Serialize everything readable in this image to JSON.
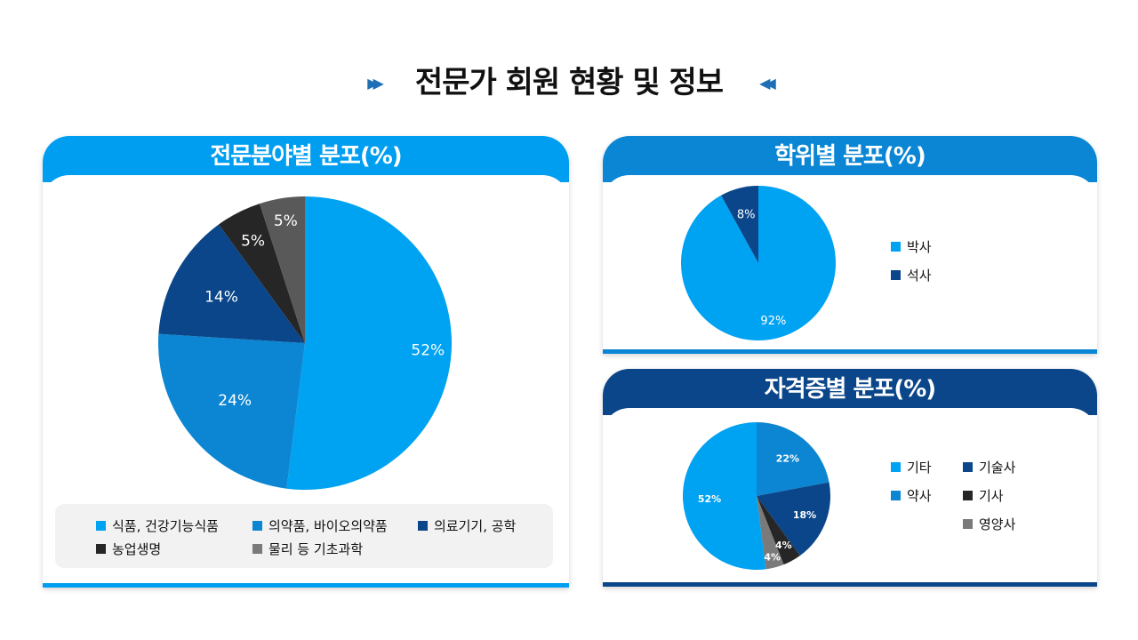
{
  "page_title": "전문가 회원 현황 및 정보",
  "arrow_left": "▶▶",
  "arrow_right": "◀◀",
  "colors": {
    "sky": "#00a2f2",
    "mid_blue": "#0c86d2",
    "navy": "#0a4689",
    "black": "#262626",
    "gray": "#7a7a7a",
    "gray_dark": "#595959"
  },
  "chart_data": [
    {
      "type": "pie",
      "title": "전문분야별 분포(%)",
      "categories": [
        "식품, 건강기능식품",
        "의약품, 바이오의약품",
        "의료기기, 공학",
        "농업생명",
        "물리 등 기초과학"
      ],
      "values": [
        52,
        24,
        14,
        5,
        5
      ],
      "labels": [
        "52%",
        "24%",
        "14%",
        "5%",
        "5%"
      ],
      "colors": [
        "#00a2f2",
        "#0c86d2",
        "#0a4689",
        "#262626",
        "#595959"
      ],
      "legend_colors": [
        "#00a2f2",
        "#0c86d2",
        "#0a4689",
        "#262626",
        "#7a7a7a"
      ],
      "legend_position": "bottom"
    },
    {
      "type": "pie",
      "title": "학위별 분포(%)",
      "categories": [
        "박사",
        "석사"
      ],
      "values": [
        92,
        8
      ],
      "labels": [
        "92%",
        "8%"
      ],
      "colors": [
        "#00a2f2",
        "#0a4689"
      ],
      "legend_position": "right"
    },
    {
      "type": "pie",
      "title": "자격증별 분포(%)",
      "categories": [
        "기타",
        "기술사",
        "약사",
        "기사",
        "영양사"
      ],
      "slice_order": [
        "약사",
        "기술사",
        "기사",
        "영양사",
        "기타"
      ],
      "values": [
        22,
        18,
        4,
        4,
        52
      ],
      "labels": [
        "22%",
        "18%",
        "4%",
        "4%",
        "52%"
      ],
      "colors": [
        "#0c86d2",
        "#0a4689",
        "#262626",
        "#7a7a7a",
        "#00a2f2"
      ],
      "legend_colors": [
        "#00a2f2",
        "#0a4689",
        "#0c86d2",
        "#262626",
        "#7a7a7a"
      ],
      "legend_position": "right"
    }
  ]
}
